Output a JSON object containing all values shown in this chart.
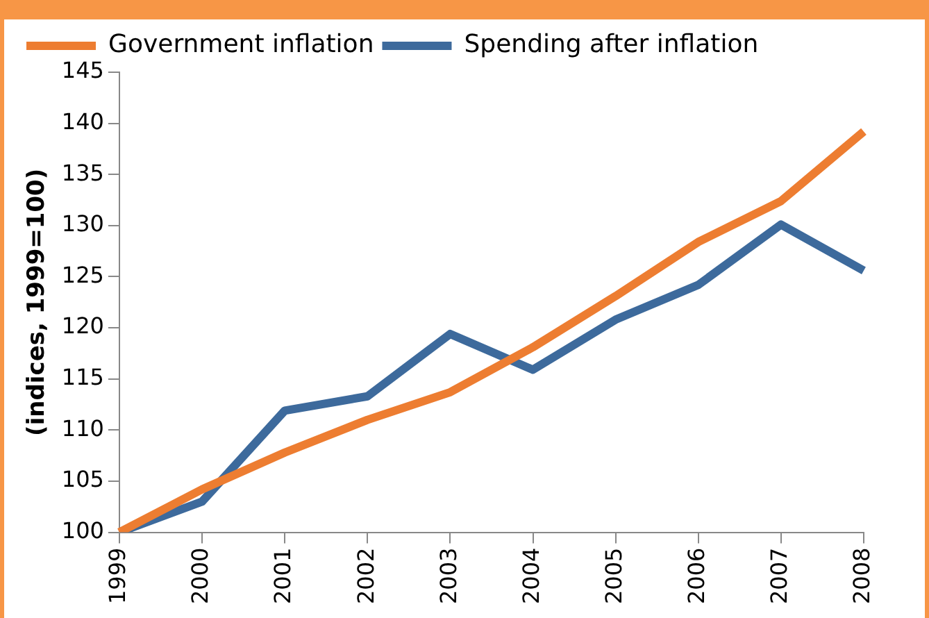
{
  "chart_data": {
    "type": "line",
    "ylabel": "(indices, 1999=100)",
    "categories": [
      "1999",
      "2000",
      "2001",
      "2002",
      "2003",
      "2004",
      "2005",
      "2006",
      "2007",
      "2008"
    ],
    "series": [
      {
        "name": "Government inflation",
        "color": "#ed7d31",
        "values": [
          100,
          104.2,
          107.8,
          111,
          113.7,
          118.1,
          123.1,
          128.4,
          132.4,
          139.2
        ]
      },
      {
        "name": "Spending after inflation",
        "color": "#3d6a9c",
        "values": [
          100,
          103,
          111.9,
          113.3,
          119.4,
          115.9,
          120.8,
          124.2,
          130.1,
          125.6
        ]
      }
    ],
    "ylim": [
      100,
      145
    ],
    "yticks": [
      100,
      105,
      110,
      115,
      120,
      125,
      130,
      135,
      140,
      145
    ],
    "grid": false,
    "legend": "top left",
    "marker": "none",
    "line_style": "solid"
  }
}
